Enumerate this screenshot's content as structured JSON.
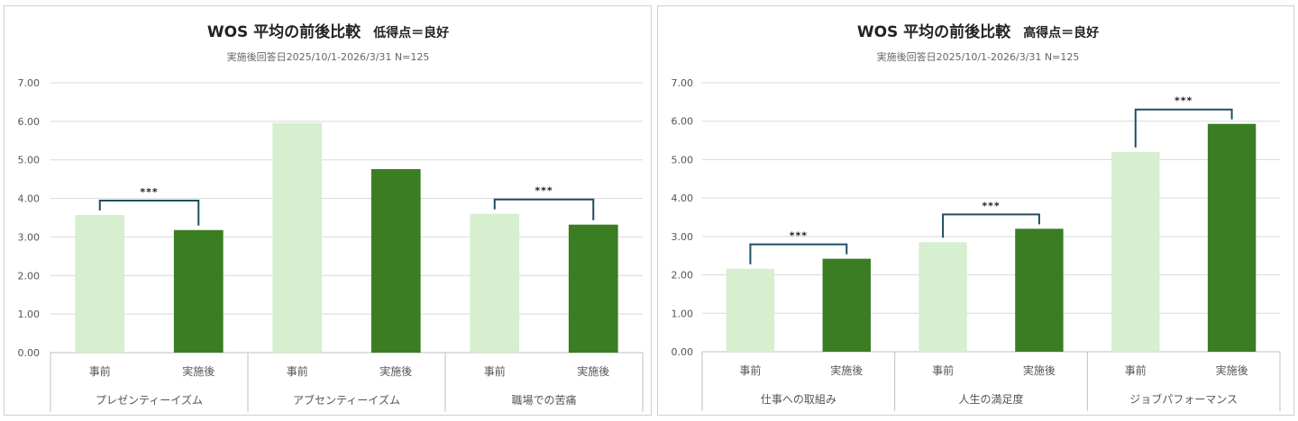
{
  "colors": {
    "before": "#d5efcf",
    "after": "#3b7d23",
    "grid": "#d9d9d9",
    "bracket": "#1f4e5f",
    "axis": "#bfbfbf"
  },
  "chart_data": [
    {
      "type": "bar",
      "title": "WOS 平均の前後比較",
      "title_note": "低得点＝良好",
      "subtitle": "実施後回答日2025/10/1-2026/3/31 N=125",
      "ylim": [
        0,
        7
      ],
      "yticks": [
        "0.00",
        "1.00",
        "2.00",
        "3.00",
        "4.00",
        "5.00",
        "6.00",
        "7.00"
      ],
      "grid": true,
      "groups": [
        {
          "name": "プレゼンティーイズム",
          "categories": [
            "事前",
            "実施後"
          ],
          "values": [
            3.57,
            3.18
          ],
          "significance": "***"
        },
        {
          "name": "アブセンティーイズム",
          "categories": [
            "事前",
            "実施後"
          ],
          "values": [
            5.96,
            4.76
          ],
          "significance": ""
        },
        {
          "name": "職場での苦痛",
          "categories": [
            "事前",
            "実施後"
          ],
          "values": [
            3.6,
            3.32
          ],
          "significance": "***"
        }
      ]
    },
    {
      "type": "bar",
      "title": "WOS 平均の前後比較",
      "title_note": "高得点＝良好",
      "subtitle": "実施後回答日2025/10/1-2026/3/31 N=125",
      "ylim": [
        0,
        7
      ],
      "yticks": [
        "0.00",
        "1.00",
        "2.00",
        "3.00",
        "4.00",
        "5.00",
        "6.00",
        "7.00"
      ],
      "grid": true,
      "groups": [
        {
          "name": "仕事への取組み",
          "categories": [
            "事前",
            "実施後"
          ],
          "values": [
            2.16,
            2.42
          ],
          "significance": "***"
        },
        {
          "name": "人生の満足度",
          "categories": [
            "事前",
            "実施後"
          ],
          "values": [
            2.85,
            3.2
          ],
          "significance": "***"
        },
        {
          "name": "ジョブパフォーマンス",
          "categories": [
            "事前",
            "実施後"
          ],
          "values": [
            5.2,
            5.93
          ],
          "significance": "***"
        }
      ]
    }
  ]
}
